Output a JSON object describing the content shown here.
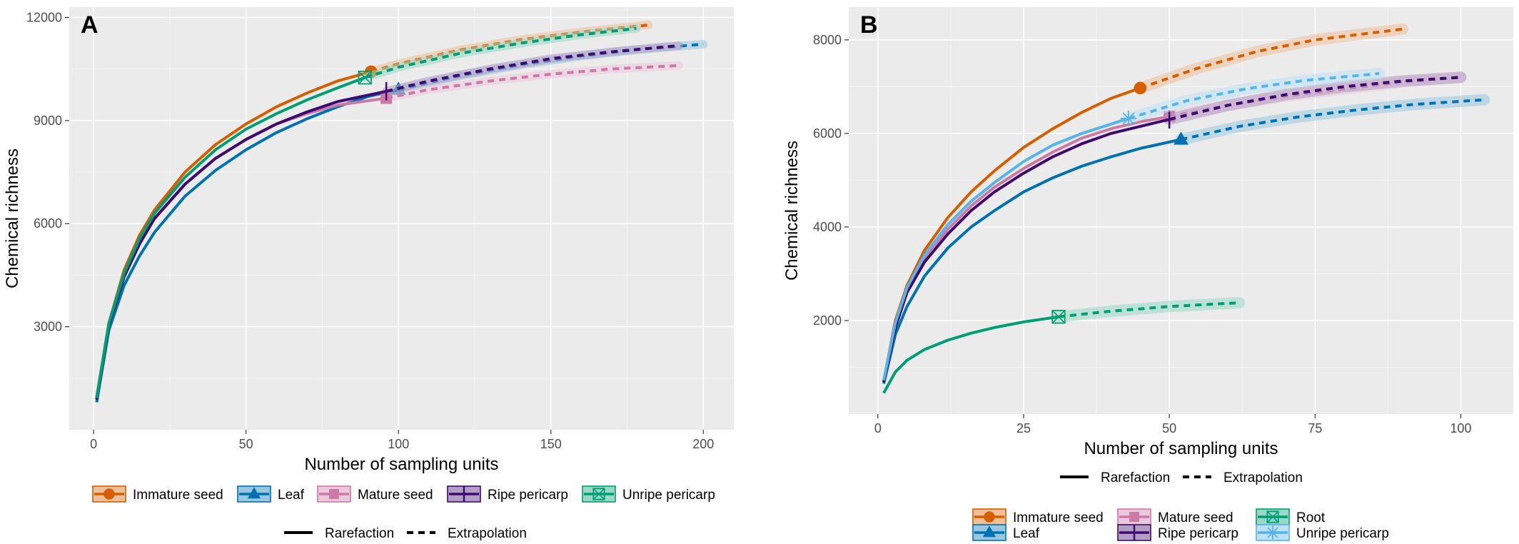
{
  "chart_data": [
    {
      "type": "line",
      "panel_label": "A",
      "xlabel": "Number of sampling units",
      "ylabel": "Chemical richness",
      "xlim": [
        -8,
        210
      ],
      "ylim": [
        0,
        12300
      ],
      "xticks": [
        0,
        50,
        100,
        150,
        200
      ],
      "yticks": [
        3000,
        6000,
        9000,
        12000
      ],
      "xtick_labels": [
        "0",
        "50",
        "100",
        "150",
        "200"
      ],
      "ytick_labels": [
        "3000",
        "6000",
        "9000",
        "12000"
      ],
      "grid": true,
      "legend_position": "bottom",
      "series": [
        {
          "name": "Immature seed",
          "color": "#D55E00",
          "marker": "circle",
          "rarefaction": [
            [
              1,
              950
            ],
            [
              5,
              3100
            ],
            [
              10,
              4650
            ],
            [
              15,
              5650
            ],
            [
              20,
              6400
            ],
            [
              30,
              7500
            ],
            [
              40,
              8300
            ],
            [
              50,
              8900
            ],
            [
              60,
              9400
            ],
            [
              70,
              9800
            ],
            [
              80,
              10150
            ],
            [
              91,
              10420
            ]
          ],
          "extrapolation": [
            [
              91,
              10420
            ],
            [
              100,
              10650
            ],
            [
              120,
              11050
            ],
            [
              140,
              11350
            ],
            [
              160,
              11580
            ],
            [
              182,
              11780
            ]
          ]
        },
        {
          "name": "Leaf",
          "color": "#0072B2",
          "marker": "triangle",
          "rarefaction": [
            [
              1,
              800
            ],
            [
              5,
              2900
            ],
            [
              10,
              4200
            ],
            [
              15,
              5050
            ],
            [
              20,
              5750
            ],
            [
              30,
              6800
            ],
            [
              40,
              7550
            ],
            [
              50,
              8150
            ],
            [
              60,
              8650
            ],
            [
              70,
              9050
            ],
            [
              80,
              9400
            ],
            [
              90,
              9700
            ],
            [
              100,
              9900
            ]
          ],
          "extrapolation": [
            [
              100,
              9900
            ],
            [
              120,
              10300
            ],
            [
              140,
              10620
            ],
            [
              160,
              10880
            ],
            [
              180,
              11080
            ],
            [
              200,
              11220
            ]
          ]
        },
        {
          "name": "Mature seed",
          "color": "#CC79A7",
          "marker": "square",
          "rarefaction": [
            [
              1,
              900
            ],
            [
              5,
              3100
            ],
            [
              10,
              4500
            ],
            [
              15,
              5450
            ],
            [
              20,
              6150
            ],
            [
              30,
              7150
            ],
            [
              40,
              7900
            ],
            [
              50,
              8450
            ],
            [
              60,
              8900
            ],
            [
              70,
              9200
            ],
            [
              80,
              9450
            ],
            [
              96,
              9650
            ]
          ],
          "extrapolation": [
            [
              96,
              9650
            ],
            [
              110,
              9900
            ],
            [
              130,
              10150
            ],
            [
              150,
              10350
            ],
            [
              170,
              10500
            ],
            [
              192,
              10600
            ]
          ]
        },
        {
          "name": "Ripe pericarp",
          "color": "#3F0A6E",
          "marker": "vline",
          "rarefaction": [
            [
              1,
              880
            ],
            [
              5,
              3050
            ],
            [
              10,
              4450
            ],
            [
              15,
              5400
            ],
            [
              20,
              6150
            ],
            [
              30,
              7150
            ],
            [
              40,
              7900
            ],
            [
              50,
              8450
            ],
            [
              60,
              8900
            ],
            [
              70,
              9250
            ],
            [
              80,
              9550
            ],
            [
              96,
              9850
            ]
          ],
          "extrapolation": [
            [
              96,
              9850
            ],
            [
              110,
              10150
            ],
            [
              130,
              10500
            ],
            [
              150,
              10800
            ],
            [
              170,
              11000
            ],
            [
              192,
              11180
            ]
          ]
        },
        {
          "name": "Unripe pericarp",
          "color": "#009E73",
          "marker": "boxx",
          "rarefaction": [
            [
              1,
              920
            ],
            [
              5,
              3100
            ],
            [
              10,
              4550
            ],
            [
              15,
              5550
            ],
            [
              20,
              6300
            ],
            [
              30,
              7350
            ],
            [
              40,
              8150
            ],
            [
              50,
              8750
            ],
            [
              60,
              9200
            ],
            [
              70,
              9600
            ],
            [
              80,
              9950
            ],
            [
              89,
              10250
            ]
          ],
          "extrapolation": [
            [
              89,
              10250
            ],
            [
              100,
              10550
            ],
            [
              120,
              10950
            ],
            [
              140,
              11250
            ],
            [
              160,
              11500
            ],
            [
              178,
              11680
            ]
          ]
        }
      ],
      "line_types": [
        "Rarefaction",
        "Extrapolation"
      ]
    },
    {
      "type": "line",
      "panel_label": "B",
      "xlabel": "Number of sampling units",
      "ylabel": "Chemical richness",
      "xlim": [
        -5,
        109
      ],
      "ylim": [
        0,
        8700
      ],
      "xticks": [
        0,
        25,
        50,
        75,
        100
      ],
      "yticks": [
        2000,
        4000,
        6000,
        8000
      ],
      "xtick_labels": [
        "0",
        "25",
        "50",
        "75",
        "100"
      ],
      "ytick_labels": [
        "2000",
        "4000",
        "6000",
        "8000"
      ],
      "grid": true,
      "legend_position": "bottom",
      "series": [
        {
          "name": "Immature seed",
          "color": "#D55E00",
          "marker": "circle",
          "rarefaction": [
            [
              1,
              700
            ],
            [
              3,
              2000
            ],
            [
              5,
              2750
            ],
            [
              8,
              3500
            ],
            [
              12,
              4200
            ],
            [
              16,
              4750
            ],
            [
              20,
              5200
            ],
            [
              25,
              5700
            ],
            [
              30,
              6100
            ],
            [
              35,
              6450
            ],
            [
              40,
              6750
            ],
            [
              45,
              6970
            ]
          ],
          "extrapolation": [
            [
              45,
              6970
            ],
            [
              55,
              7400
            ],
            [
              65,
              7750
            ],
            [
              75,
              8000
            ],
            [
              90,
              8230
            ]
          ]
        },
        {
          "name": "Leaf",
          "color": "#0072B2",
          "marker": "triangle",
          "rarefaction": [
            [
              1,
              650
            ],
            [
              3,
              1700
            ],
            [
              5,
              2300
            ],
            [
              8,
              2950
            ],
            [
              12,
              3550
            ],
            [
              16,
              4000
            ],
            [
              20,
              4350
            ],
            [
              25,
              4750
            ],
            [
              30,
              5050
            ],
            [
              35,
              5300
            ],
            [
              40,
              5500
            ],
            [
              45,
              5680
            ],
            [
              52,
              5870
            ]
          ],
          "extrapolation": [
            [
              52,
              5870
            ],
            [
              62,
              6150
            ],
            [
              72,
              6350
            ],
            [
              82,
              6500
            ],
            [
              92,
              6620
            ],
            [
              104,
              6720
            ]
          ]
        },
        {
          "name": "Mature seed",
          "color": "#CC79A7",
          "marker": "square",
          "rarefaction": [
            [
              1,
              700
            ],
            [
              3,
              1900
            ],
            [
              5,
              2650
            ],
            [
              8,
              3350
            ],
            [
              12,
              3950
            ],
            [
              16,
              4450
            ],
            [
              20,
              4850
            ],
            [
              25,
              5250
            ],
            [
              30,
              5600
            ],
            [
              35,
              5900
            ],
            [
              40,
              6100
            ],
            [
              45,
              6250
            ],
            [
              50,
              6360
            ]
          ],
          "extrapolation": [
            [
              50,
              6360
            ],
            [
              60,
              6600
            ],
            [
              70,
              6800
            ],
            [
              80,
              6950
            ],
            [
              90,
              7100
            ],
            [
              100,
              7200
            ]
          ]
        },
        {
          "name": "Ripe pericarp",
          "color": "#3F0A6E",
          "marker": "vline",
          "rarefaction": [
            [
              1,
              680
            ],
            [
              3,
              1850
            ],
            [
              5,
              2600
            ],
            [
              8,
              3250
            ],
            [
              12,
              3850
            ],
            [
              16,
              4350
            ],
            [
              20,
              4750
            ],
            [
              25,
              5150
            ],
            [
              30,
              5500
            ],
            [
              35,
              5780
            ],
            [
              40,
              6000
            ],
            [
              45,
              6150
            ],
            [
              50,
              6300
            ]
          ],
          "extrapolation": [
            [
              50,
              6300
            ],
            [
              60,
              6600
            ],
            [
              70,
              6830
            ],
            [
              80,
              7000
            ],
            [
              90,
              7120
            ],
            [
              100,
              7200
            ]
          ]
        },
        {
          "name": "Root",
          "color": "#009E73",
          "marker": "boxx",
          "rarefaction": [
            [
              1,
              450
            ],
            [
              3,
              900
            ],
            [
              5,
              1150
            ],
            [
              8,
              1380
            ],
            [
              12,
              1580
            ],
            [
              16,
              1730
            ],
            [
              20,
              1850
            ],
            [
              25,
              1970
            ],
            [
              31,
              2080
            ]
          ],
          "extrapolation": [
            [
              31,
              2080
            ],
            [
              40,
              2200
            ],
            [
              50,
              2300
            ],
            [
              62,
              2380
            ]
          ]
        },
        {
          "name": "Unripe pericarp",
          "color": "#56B4E9",
          "marker": "asterisk",
          "rarefaction": [
            [
              1,
              720
            ],
            [
              3,
              1950
            ],
            [
              5,
              2700
            ],
            [
              8,
              3400
            ],
            [
              12,
              4050
            ],
            [
              16,
              4550
            ],
            [
              20,
              4950
            ],
            [
              25,
              5400
            ],
            [
              30,
              5750
            ],
            [
              35,
              6000
            ],
            [
              40,
              6200
            ],
            [
              43,
              6320
            ]
          ],
          "extrapolation": [
            [
              43,
              6320
            ],
            [
              53,
              6700
            ],
            [
              63,
              6950
            ],
            [
              73,
              7130
            ],
            [
              86,
              7280
            ]
          ]
        }
      ],
      "line_types": [
        "Rarefaction",
        "Extrapolation"
      ]
    }
  ]
}
